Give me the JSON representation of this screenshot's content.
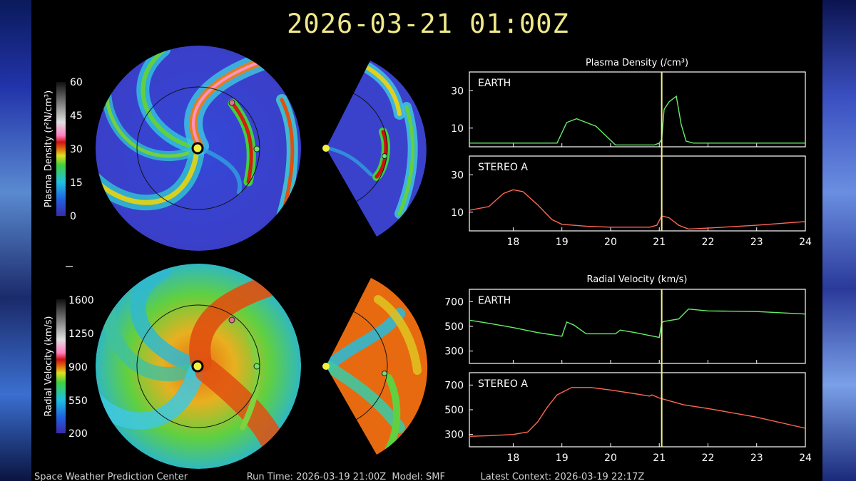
{
  "title": "2026-03-21  01:00Z",
  "footer": "Space Weather Prediction Center                    Run Time: 2026-03-19 21:00Z  Model: SMF            Latest Context: 2026-03-19 22:17Z",
  "colorbars": {
    "density": {
      "label": "Plasma Density (r²N/cm³)",
      "ticks": [
        "60",
        "45",
        "30",
        "15",
        "0"
      ]
    },
    "velocity": {
      "label": "Radial Velocity (km/s)",
      "ticks": [
        "1600",
        "1250",
        "900",
        "550",
        "200"
      ]
    }
  },
  "colors": {
    "earth": "#66ee66",
    "stereo": "#ff6655",
    "marker": "#f4f090",
    "panel_border": "#ffffff"
  },
  "chart_data": [
    {
      "type": "line",
      "title": "Plasma Density (/cm³)",
      "x_ticks": [
        "18",
        "19",
        "20",
        "21",
        "22",
        "23",
        "24"
      ],
      "xlim": [
        17.1,
        24
      ],
      "marker_x": 21.05,
      "panels": [
        {
          "name": "EARTH",
          "color": "#66ee66",
          "ylim": [
            0,
            40
          ],
          "y_ticks": [
            "30",
            "10"
          ],
          "y_tick_values": [
            30,
            10
          ],
          "x": [
            17.1,
            18,
            18.9,
            19.1,
            19.3,
            19.5,
            19.7,
            19.9,
            20.1,
            20.5,
            20.9,
            21.0,
            21.05,
            21.1,
            21.2,
            21.35,
            21.45,
            21.55,
            21.7,
            22,
            23,
            24
          ],
          "y": [
            2,
            2,
            2,
            13,
            15,
            13,
            11,
            6,
            1,
            1,
            1,
            2,
            4,
            20,
            24,
            27,
            12,
            3,
            2,
            2,
            2,
            2
          ]
        },
        {
          "name": "STEREO A",
          "color": "#ff6655",
          "ylim": [
            0,
            40
          ],
          "y_ticks": [
            "30",
            "10"
          ],
          "y_tick_values": [
            30,
            10
          ],
          "x": [
            17.1,
            17.5,
            17.8,
            18.0,
            18.2,
            18.5,
            18.8,
            19.0,
            19.5,
            20,
            20.8,
            20.95,
            21.05,
            21.2,
            21.4,
            21.6,
            22,
            23,
            24
          ],
          "y": [
            11,
            13,
            20,
            22,
            21,
            14,
            6,
            3.5,
            2.5,
            2,
            2,
            3,
            8,
            7,
            3,
            1,
            1.5,
            3,
            5
          ]
        }
      ]
    },
    {
      "type": "line",
      "title": "Radial Velocity (km/s)",
      "x_ticks": [
        "18",
        "19",
        "20",
        "21",
        "22",
        "23",
        "24"
      ],
      "xlim": [
        17.1,
        24
      ],
      "marker_x": 21.05,
      "panels": [
        {
          "name": "EARTH",
          "color": "#66ee66",
          "ylim": [
            200,
            800
          ],
          "y_ticks": [
            "700",
            "500",
            "300"
          ],
          "y_tick_values": [
            700,
            500,
            300
          ],
          "x": [
            17.1,
            17.5,
            18,
            18.5,
            19.0,
            19.1,
            19.25,
            19.5,
            19.8,
            20.1,
            20.2,
            20.5,
            21.0,
            21.05,
            21.1,
            21.4,
            21.6,
            22,
            23,
            24
          ],
          "y": [
            550,
            525,
            490,
            450,
            420,
            535,
            510,
            440,
            440,
            440,
            470,
            450,
            410,
            530,
            540,
            560,
            640,
            625,
            620,
            600
          ]
        },
        {
          "name": "STEREO A",
          "color": "#ff6655",
          "ylim": [
            200,
            800
          ],
          "y_ticks": [
            "700",
            "500",
            "300"
          ],
          "y_tick_values": [
            700,
            500,
            300
          ],
          "x": [
            17.1,
            17.5,
            18,
            18.3,
            18.5,
            18.7,
            18.9,
            19.2,
            19.6,
            20,
            20.5,
            20.8,
            20.85,
            21.0,
            21.05,
            21.5,
            22,
            23,
            24
          ],
          "y": [
            285,
            290,
            300,
            320,
            400,
            520,
            620,
            680,
            680,
            660,
            630,
            610,
            620,
            595,
            590,
            540,
            510,
            440,
            350
          ]
        }
      ]
    }
  ]
}
